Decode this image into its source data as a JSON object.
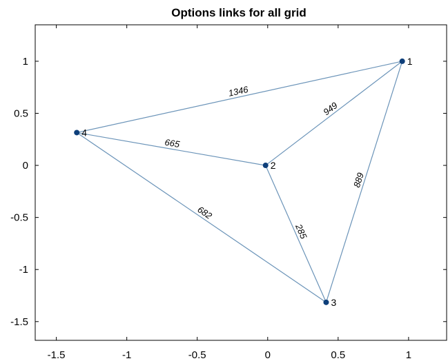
{
  "chart_data": {
    "type": "network-graph",
    "title": "Options links for all grid",
    "xlabel": "",
    "ylabel": "",
    "xlim": [
      -1.65,
      1.27
    ],
    "ylim": [
      -1.68,
      1.35
    ],
    "grid": false,
    "x_ticks": [
      {
        "value": -1.5,
        "label": "-1.5"
      },
      {
        "value": -1,
        "label": "-1"
      },
      {
        "value": -0.5,
        "label": "-0.5"
      },
      {
        "value": 0,
        "label": "0"
      },
      {
        "value": 0.5,
        "label": "0.5"
      },
      {
        "value": 1,
        "label": "1"
      }
    ],
    "y_ticks": [
      {
        "value": 1,
        "label": "1"
      },
      {
        "value": 0.5,
        "label": "0.5"
      },
      {
        "value": 0,
        "label": "0"
      },
      {
        "value": -0.5,
        "label": "-0.5"
      },
      {
        "value": -1,
        "label": "-1"
      },
      {
        "value": -1.5,
        "label": "-1.5"
      }
    ],
    "nodes": [
      {
        "id": "1",
        "label": "1",
        "x": 0.955,
        "y": 1.0
      },
      {
        "id": "2",
        "label": "2",
        "x": -0.015,
        "y": 0.0
      },
      {
        "id": "3",
        "label": "3",
        "x": 0.415,
        "y": -1.315
      },
      {
        "id": "4",
        "label": "4",
        "x": -1.355,
        "y": 0.315
      }
    ],
    "edges": [
      {
        "source": "4",
        "target": "1",
        "weight": "1346"
      },
      {
        "source": "2",
        "target": "1",
        "weight": "949"
      },
      {
        "source": "3",
        "target": "1",
        "weight": "889"
      },
      {
        "source": "4",
        "target": "2",
        "weight": "665"
      },
      {
        "source": "4",
        "target": "3",
        "weight": "682"
      },
      {
        "source": "2",
        "target": "3",
        "weight": "285"
      }
    ]
  }
}
